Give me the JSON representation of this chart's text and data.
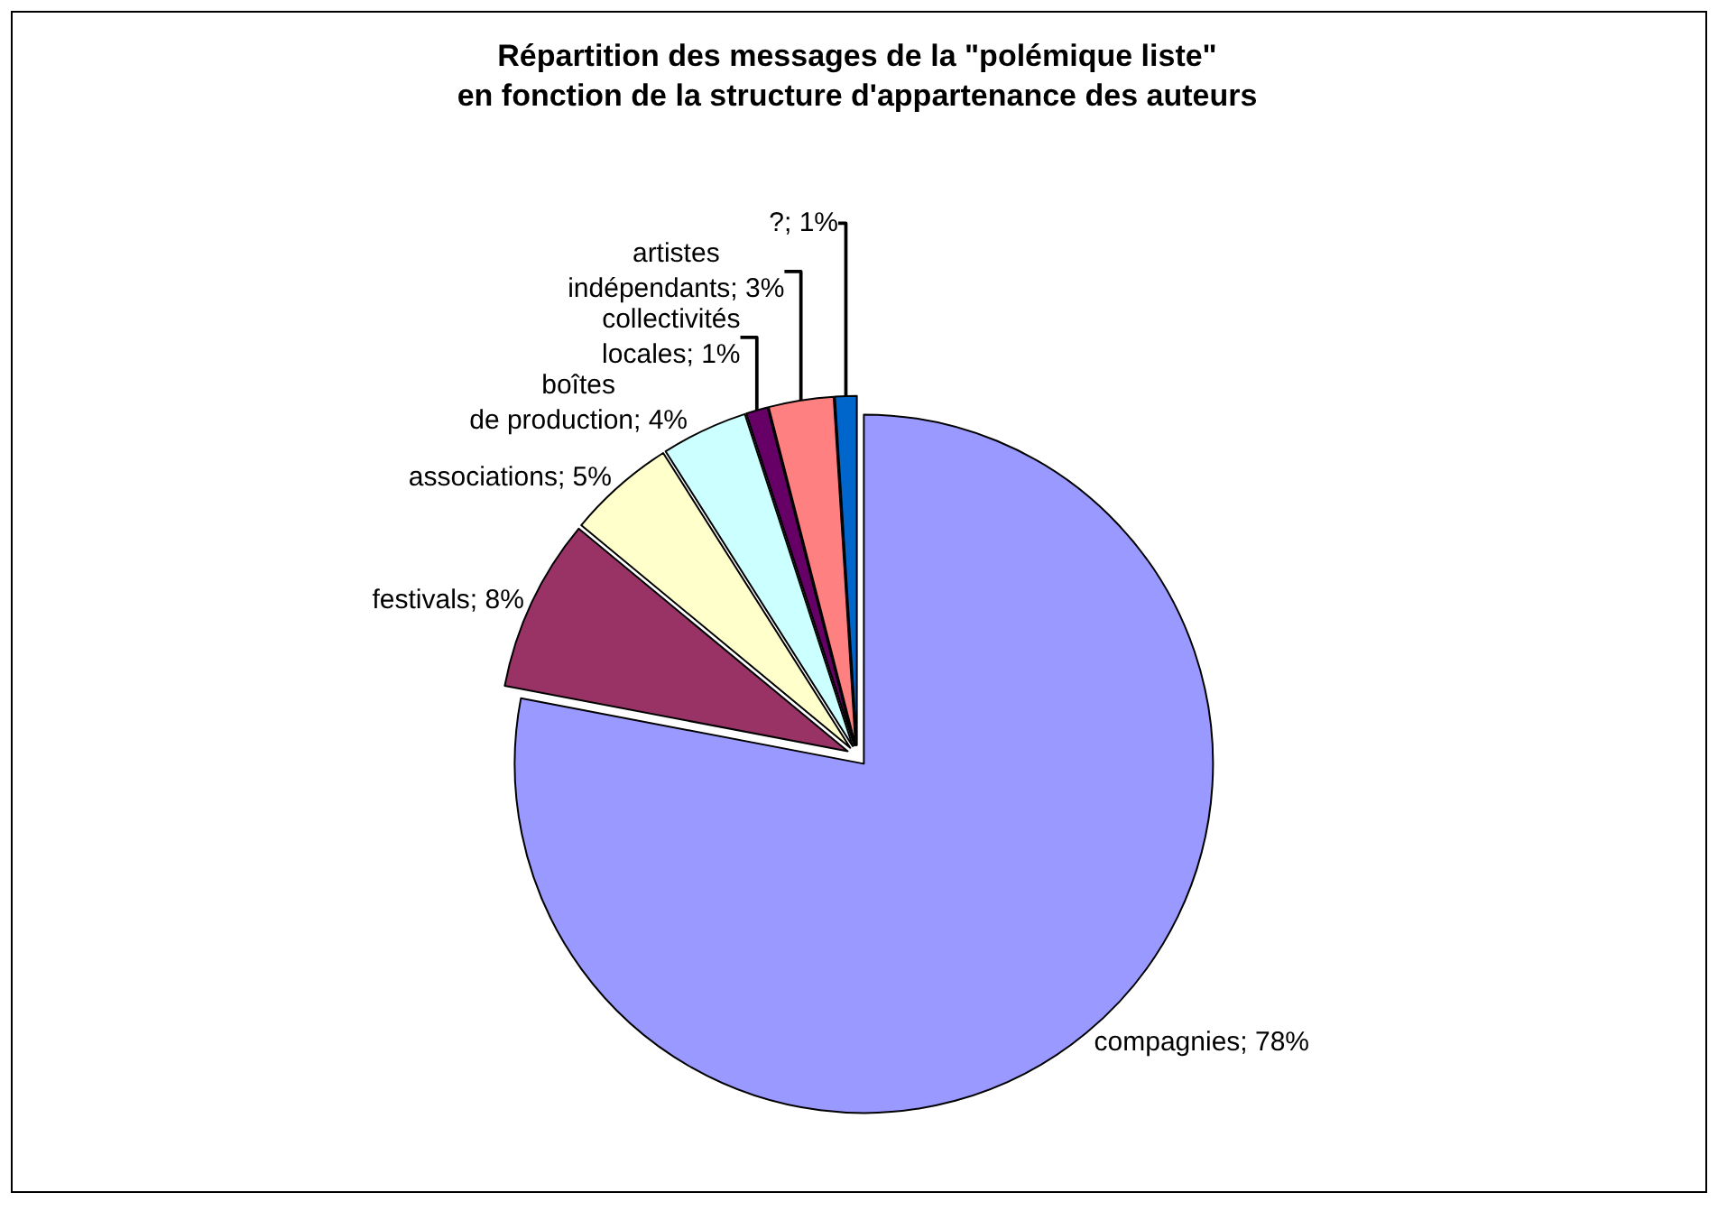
{
  "chart_data": {
    "type": "pie",
    "title": "Répartition des messages de la \"polémique liste\"\nen fonction de la structure d'appartenance des auteurs",
    "categories": [
      "compagnies",
      "festivals",
      "associations",
      "boîtes de production",
      "collectivités locales",
      "artistes indépendants",
      "?"
    ],
    "values": [
      78,
      8,
      5,
      4,
      1,
      3,
      1
    ],
    "value_labels": [
      "78%",
      "8%",
      "5%",
      "4%",
      "1%",
      "3%",
      "1%"
    ],
    "colors": [
      "#9999ff",
      "#993366",
      "#ffffcc",
      "#ccffff",
      "#660066",
      "#ff8080",
      "#0066cc"
    ],
    "legend": false
  }
}
